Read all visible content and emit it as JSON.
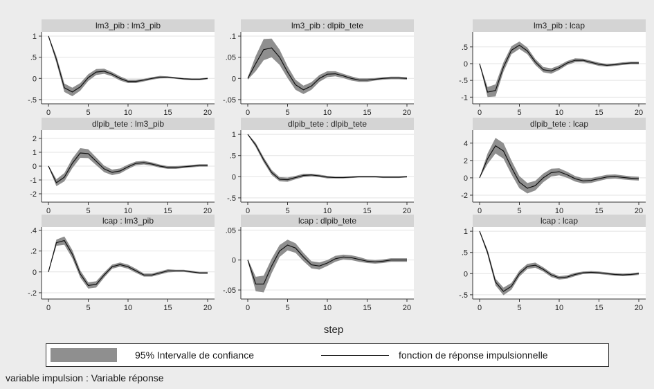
{
  "chart_data": {
    "type": "line",
    "layout": "3x3 grid of impulse response functions",
    "xlabel": "step",
    "x": [
      0,
      1,
      2,
      3,
      4,
      5,
      6,
      7,
      8,
      9,
      10,
      11,
      12,
      13,
      14,
      15,
      16,
      17,
      18,
      19,
      20
    ],
    "xticks": [
      0,
      5,
      10,
      15,
      20
    ],
    "grid": "horizontal",
    "legend": {
      "position": "bottom",
      "ci_label": "95% Intervalle de confiance",
      "line_label": "fonction de réponse impulsionnelle"
    },
    "note": "variable impulsion : Variable réponse",
    "colors": {
      "band": "#8f8f8f",
      "line": "#111111",
      "title_bg": "#d4d4d4",
      "background": "#ececec"
    },
    "panels": [
      {
        "title": "lm3_pib : lm3_pib",
        "ylim": [
          -0.6,
          1.1
        ],
        "yticks": [
          1,
          0.5,
          0,
          -0.5
        ],
        "ytick_labels": [
          "1",
          ".5",
          "0",
          "-.5"
        ],
        "values": [
          1.0,
          0.45,
          -0.22,
          -0.32,
          -0.2,
          0.02,
          0.15,
          0.17,
          0.1,
          0.0,
          -0.07,
          -0.07,
          -0.04,
          0.0,
          0.03,
          0.03,
          0.01,
          -0.01,
          -0.02,
          -0.02,
          0.0
        ],
        "band": [
          0.02,
          0.08,
          0.1,
          0.1,
          0.09,
          0.08,
          0.07,
          0.06,
          0.05,
          0.05,
          0.04,
          0.04,
          0.03,
          0.03,
          0.03,
          0.02,
          0.02,
          0.02,
          0.02,
          0.02,
          0.02
        ]
      },
      {
        "title": "lm3_pib : dlpib_tete",
        "ylim": [
          -0.06,
          0.11
        ],
        "yticks": [
          0.1,
          0.05,
          0,
          -0.05
        ],
        "ytick_labels": [
          ".1",
          ".05",
          "0",
          "-.05"
        ],
        "values": [
          0.0,
          0.035,
          0.068,
          0.072,
          0.05,
          0.015,
          -0.015,
          -0.027,
          -0.018,
          0.0,
          0.01,
          0.011,
          0.006,
          0.0,
          -0.004,
          -0.004,
          -0.002,
          0.0,
          0.001,
          0.001,
          0.0
        ],
        "band": [
          0.003,
          0.018,
          0.025,
          0.022,
          0.018,
          0.014,
          0.012,
          0.01,
          0.009,
          0.008,
          0.007,
          0.006,
          0.005,
          0.005,
          0.004,
          0.004,
          0.003,
          0.003,
          0.003,
          0.003,
          0.003
        ]
      },
      {
        "title": "lm3_pib : lcap",
        "ylim": [
          -1.2,
          0.95
        ],
        "yticks": [
          0.5,
          0,
          -0.5,
          -1
        ],
        "ytick_labels": [
          ".5",
          "0",
          "-.5",
          "-1"
        ],
        "values": [
          0.0,
          -0.85,
          -0.8,
          -0.1,
          0.4,
          0.55,
          0.38,
          0.05,
          -0.18,
          -0.22,
          -0.12,
          0.02,
          0.1,
          0.1,
          0.04,
          -0.02,
          -0.05,
          -0.03,
          0.0,
          0.02,
          0.02
        ],
        "band": [
          0.02,
          0.15,
          0.18,
          0.14,
          0.12,
          0.11,
          0.1,
          0.09,
          0.08,
          0.08,
          0.07,
          0.06,
          0.06,
          0.05,
          0.05,
          0.05,
          0.04,
          0.04,
          0.04,
          0.04,
          0.04
        ]
      },
      {
        "title": "dlpib_tete : lm3_pib",
        "ylim": [
          -2.6,
          2.6
        ],
        "yticks": [
          2,
          1,
          0,
          -1,
          -2
        ],
        "ytick_labels": [
          "2",
          "1",
          "0",
          "-1",
          "-2"
        ],
        "values": [
          0.0,
          -1.2,
          -0.8,
          0.2,
          0.95,
          0.9,
          0.35,
          -0.2,
          -0.45,
          -0.35,
          -0.05,
          0.2,
          0.25,
          0.15,
          0.0,
          -0.1,
          -0.1,
          -0.05,
          0.0,
          0.05,
          0.05
        ],
        "band": [
          0.05,
          0.25,
          0.3,
          0.35,
          0.35,
          0.32,
          0.28,
          0.24,
          0.2,
          0.18,
          0.16,
          0.14,
          0.13,
          0.12,
          0.11,
          0.1,
          0.1,
          0.09,
          0.09,
          0.09,
          0.09
        ]
      },
      {
        "title": "dlpib_tete : dlpib_tete",
        "ylim": [
          -0.6,
          1.1
        ],
        "yticks": [
          1,
          0.5,
          0,
          -0.5
        ],
        "ytick_labels": [
          "1",
          ".5",
          "0",
          "-.5"
        ],
        "values": [
          1.0,
          0.75,
          0.4,
          0.1,
          -0.06,
          -0.07,
          -0.02,
          0.03,
          0.04,
          0.02,
          -0.01,
          -0.02,
          -0.02,
          -0.01,
          0.0,
          0.0,
          0.0,
          -0.01,
          -0.01,
          -0.01,
          0.0
        ],
        "band": [
          0.01,
          0.05,
          0.06,
          0.06,
          0.05,
          0.05,
          0.04,
          0.04,
          0.03,
          0.03,
          0.03,
          0.02,
          0.02,
          0.02,
          0.02,
          0.02,
          0.02,
          0.02,
          0.02,
          0.02,
          0.02
        ]
      },
      {
        "title": "dlpib_tete : lcap",
        "ylim": [
          -2.8,
          5.5
        ],
        "yticks": [
          4,
          2,
          0,
          -2
        ],
        "ytick_labels": [
          "4",
          "2",
          "0",
          "-2"
        ],
        "values": [
          0.0,
          2.2,
          3.7,
          3.1,
          1.2,
          -0.5,
          -1.2,
          -0.9,
          0.0,
          0.6,
          0.7,
          0.35,
          -0.1,
          -0.35,
          -0.3,
          -0.1,
          0.1,
          0.15,
          0.05,
          -0.05,
          -0.1
        ],
        "band": [
          0.05,
          0.6,
          0.9,
          0.9,
          0.8,
          0.7,
          0.6,
          0.55,
          0.5,
          0.45,
          0.4,
          0.35,
          0.32,
          0.3,
          0.28,
          0.26,
          0.25,
          0.24,
          0.23,
          0.22,
          0.22
        ]
      },
      {
        "title": "lcap : lm3_pib",
        "ylim": [
          -0.26,
          0.43
        ],
        "yticks": [
          0.4,
          0.2,
          0,
          -0.2
        ],
        "ytick_labels": [
          ".4",
          ".2",
          "0",
          "-.2"
        ],
        "values": [
          0.0,
          0.28,
          0.3,
          0.17,
          -0.02,
          -0.13,
          -0.12,
          -0.03,
          0.05,
          0.07,
          0.05,
          0.01,
          -0.03,
          -0.03,
          -0.01,
          0.01,
          0.01,
          0.01,
          0.0,
          -0.01,
          -0.01
        ],
        "band": [
          0.005,
          0.03,
          0.04,
          0.04,
          0.035,
          0.03,
          0.03,
          0.025,
          0.02,
          0.02,
          0.02,
          0.02,
          0.015,
          0.015,
          0.015,
          0.015,
          0.01,
          0.01,
          0.01,
          0.01,
          0.01
        ]
      },
      {
        "title": "lcap : dlpib_tete",
        "ylim": [
          -0.065,
          0.055
        ],
        "yticks": [
          0.05,
          0,
          -0.05
        ],
        "ytick_labels": [
          ".05",
          "0",
          "-.05"
        ],
        "values": [
          0.0,
          -0.04,
          -0.04,
          -0.01,
          0.015,
          0.025,
          0.02,
          0.005,
          -0.008,
          -0.01,
          -0.005,
          0.002,
          0.005,
          0.004,
          0.001,
          -0.002,
          -0.003,
          -0.002,
          0.0,
          0.0,
          0.0
        ],
        "band": [
          0.002,
          0.012,
          0.014,
          0.012,
          0.01,
          0.009,
          0.008,
          0.007,
          0.006,
          0.006,
          0.005,
          0.005,
          0.004,
          0.004,
          0.004,
          0.003,
          0.003,
          0.003,
          0.003,
          0.003,
          0.003
        ]
      },
      {
        "title": "lcap : lcap",
        "ylim": [
          -0.6,
          1.1
        ],
        "yticks": [
          1,
          0.5,
          0,
          -0.5
        ],
        "ytick_labels": [
          "1",
          ".5",
          "0",
          "-.5"
        ],
        "values": [
          1.0,
          0.5,
          -0.2,
          -0.42,
          -0.3,
          0.0,
          0.17,
          0.2,
          0.1,
          -0.03,
          -0.1,
          -0.08,
          -0.02,
          0.02,
          0.03,
          0.02,
          0.0,
          -0.02,
          -0.03,
          -0.02,
          0.0
        ],
        "band": [
          0.02,
          0.06,
          0.08,
          0.09,
          0.08,
          0.07,
          0.06,
          0.06,
          0.05,
          0.05,
          0.04,
          0.04,
          0.04,
          0.03,
          0.03,
          0.03,
          0.03,
          0.03,
          0.03,
          0.03,
          0.03
        ]
      }
    ]
  }
}
